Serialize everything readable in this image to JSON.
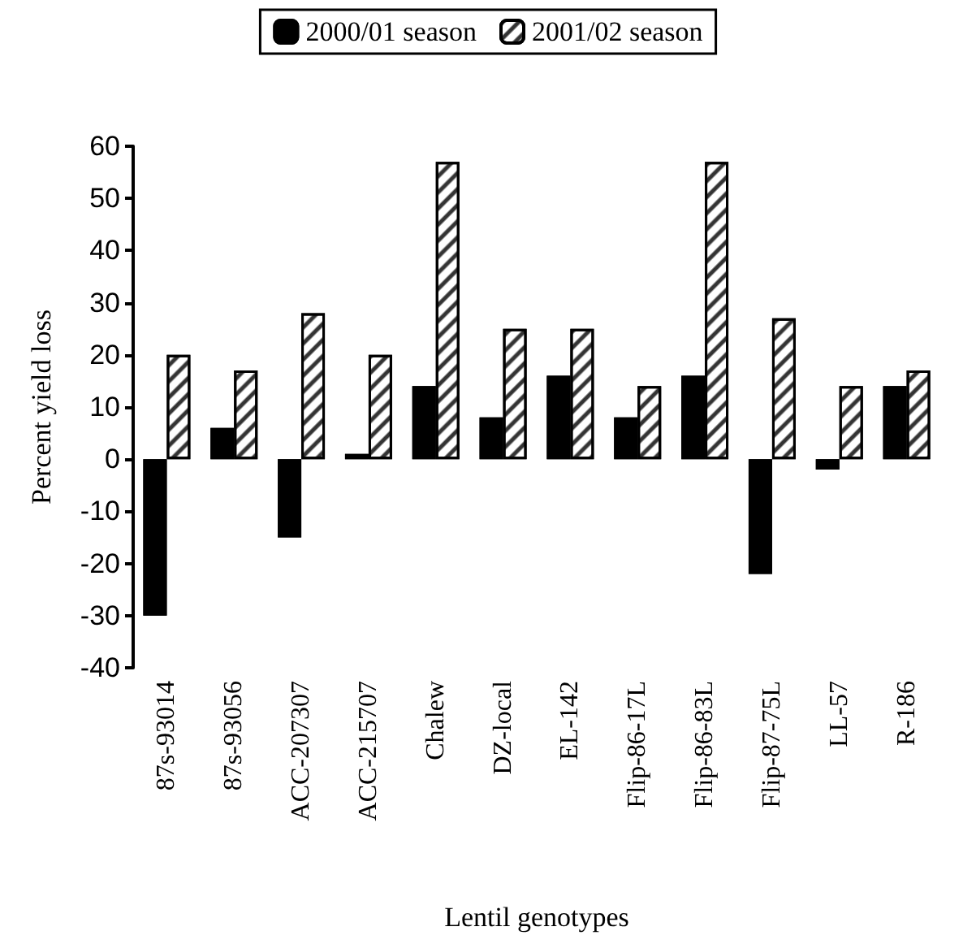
{
  "chart_data": {
    "type": "bar",
    "xlabel": "Lentil genotypes",
    "ylabel": "Percent yield loss",
    "categories": [
      "87s-93014",
      "87s-93056",
      "ACC-207307",
      "ACC-215707",
      "Chalew",
      "DZ-local",
      "EL-142",
      "Flip-86-17L",
      "Flip-86-83L",
      "Flip-87-75L",
      "LL-57",
      "R-186"
    ],
    "series": [
      {
        "name": "2000/01 season",
        "color": "#000000",
        "values": [
          -30,
          6,
          -15,
          1,
          14,
          8,
          16,
          8,
          16,
          -22,
          -2,
          14
        ]
      },
      {
        "name": "2001/02 season",
        "color": "#ffffff",
        "values": [
          20,
          17,
          28,
          20,
          57,
          25,
          25,
          14,
          57,
          27,
          14,
          17
        ]
      }
    ],
    "ylim": [
      -40,
      60
    ],
    "yticks": [
      -40,
      -30,
      -20,
      -10,
      0,
      10,
      20,
      30,
      40,
      50,
      60
    ],
    "grid": false,
    "legend": "top"
  }
}
